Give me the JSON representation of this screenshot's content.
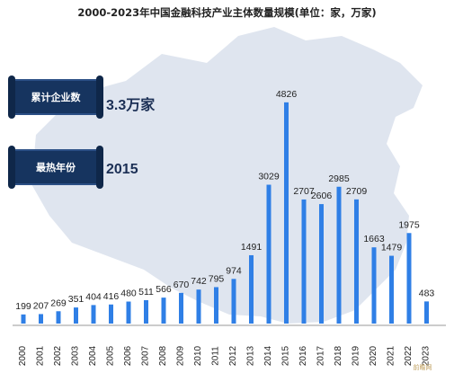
{
  "title": "2000-2023年中国金融科技产业主体数量规模(单位：家，万家)",
  "panel": {
    "total_label": "累计企业数",
    "total_value": "3.3万家",
    "peak_label": "最热年份",
    "peak_value": "2015"
  },
  "watermark": "前瞻网",
  "colors": {
    "bar": "#2f7fe6",
    "map": "#d4dcea",
    "panel": "#16345f"
  },
  "chart_data": {
    "type": "bar",
    "categories": [
      "2000",
      "2001",
      "2002",
      "2003",
      "2004",
      "2005",
      "2006",
      "2007",
      "2008",
      "2009",
      "2010",
      "2011",
      "2012",
      "2013",
      "2014",
      "2015",
      "2016",
      "2017",
      "2018",
      "2019",
      "2020",
      "2021",
      "2022",
      "2023"
    ],
    "values": [
      199,
      207,
      269,
      351,
      404,
      416,
      480,
      511,
      566,
      670,
      742,
      795,
      974,
      1491,
      3029,
      4826,
      2707,
      2606,
      2985,
      2709,
      1663,
      1479,
      1975,
      483
    ],
    "title": "2000-2023年中国金融科技产业主体数量规模(单位：家，万家)",
    "xlabel": "",
    "ylabel": "",
    "ylim": [
      0,
      5000
    ],
    "grid": false,
    "legend": "none"
  }
}
